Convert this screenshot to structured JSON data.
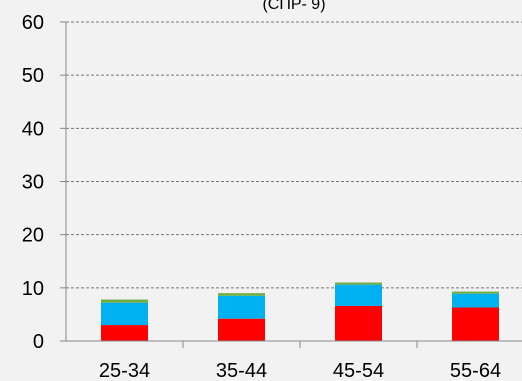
{
  "chart_data": {
    "type": "bar",
    "stacked": true,
    "title": "(СПР- 9)",
    "xlabel": "",
    "ylabel": "",
    "categories": [
      "25-34",
      "35-44",
      "45-54",
      "55-64"
    ],
    "series": [
      {
        "color": "#ff0000",
        "values": [
          3.0,
          4.2,
          6.6,
          6.3
        ]
      },
      {
        "color": "#00b0f0",
        "values": [
          4.2,
          4.3,
          4.0,
          2.6
        ]
      },
      {
        "color": "#70ad47",
        "values": [
          0.6,
          0.5,
          0.4,
          0.4
        ]
      }
    ],
    "ylim": [
      0,
      60
    ],
    "yticks": [
      "0",
      "10",
      "20",
      "30",
      "40",
      "50",
      "60"
    ],
    "grid": true,
    "grid_style": "dashed",
    "legend": "none"
  }
}
